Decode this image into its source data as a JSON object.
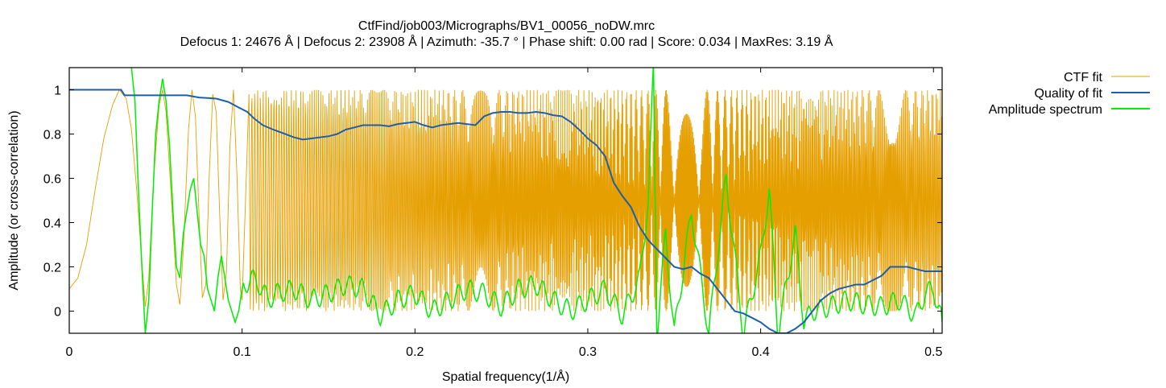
{
  "chart_data": {
    "type": "line",
    "title": "CtfFind/job003/Micrographs/BV1_00056_noDW.mrc",
    "subtitle": "Defocus 1: 24676 Å | Defocus 2: 23908 Å | Azimuth: -35.7 ° | Phase shift: 0.00 rad | Score: 0.034 | MaxRes: 3.19 Å",
    "xlabel": "Spatial frequency(1/Å)",
    "ylabel": "Amplitude (or cross-correlation)",
    "xlim": [
      0,
      0.505
    ],
    "ylim": [
      -0.1,
      1.1
    ],
    "x_ticks": [
      {
        "v": 0,
        "label": "0"
      },
      {
        "v": 0.1,
        "label": "0.1"
      },
      {
        "v": 0.2,
        "label": "0.2"
      },
      {
        "v": 0.3,
        "label": "0.3"
      },
      {
        "v": 0.4,
        "label": "0.4"
      },
      {
        "v": 0.5,
        "label": "0.5"
      }
    ],
    "y_ticks": [
      {
        "v": 0,
        "label": "0"
      },
      {
        "v": 0.2,
        "label": "0.2"
      },
      {
        "v": 0.4,
        "label": "0.4"
      },
      {
        "v": 0.6,
        "label": "0.6"
      },
      {
        "v": 0.8,
        "label": "0.8"
      },
      {
        "v": 1,
        "label": "1"
      }
    ],
    "legend_position": "top-right, outside plot",
    "grid": false,
    "series": [
      {
        "name": "CTF fit",
        "color": "#e69f00",
        "points": [
          [
            0,
            0.1
          ],
          [
            0.005,
            0.15
          ],
          [
            0.01,
            0.3
          ],
          [
            0.015,
            0.55
          ],
          [
            0.02,
            0.78
          ],
          [
            0.025,
            0.93
          ],
          [
            0.029,
            1.0
          ],
          [
            0.033,
            0.96
          ],
          [
            0.036,
            0.82
          ],
          [
            0.039,
            0.55
          ],
          [
            0.042,
            0.22
          ],
          [
            0.044,
            0.02
          ],
          [
            0.046,
            0.15
          ],
          [
            0.049,
            0.62
          ],
          [
            0.052,
            0.93
          ],
          [
            0.054,
            1.0
          ],
          [
            0.056,
            0.9
          ],
          [
            0.059,
            0.52
          ],
          [
            0.062,
            0.12
          ],
          [
            0.064,
            0.03
          ],
          [
            0.066,
            0.28
          ],
          [
            0.069,
            0.82
          ],
          [
            0.071,
            1.0
          ],
          [
            0.073,
            0.88
          ],
          [
            0.075,
            0.45
          ],
          [
            0.077,
            0.06
          ],
          [
            0.079,
            0.12
          ],
          [
            0.081,
            0.62
          ],
          [
            0.083,
            0.98
          ],
          [
            0.085,
            0.9
          ],
          [
            0.087,
            0.45
          ],
          [
            0.089,
            0.05
          ],
          [
            0.091,
            0.18
          ],
          [
            0.093,
            0.75
          ],
          [
            0.095,
            1.0
          ],
          [
            0.097,
            0.62
          ],
          [
            0.099,
            0.1
          ],
          [
            0.1,
            0.05
          ],
          [
            0.102,
            0.5
          ],
          [
            0.104,
            0.98
          ]
        ],
        "oscillation": {
          "comment": "Continues oscillating between ~0 and ~1 with increasing frequency up to x=0.505",
          "min": 0.0,
          "max": 1.0
        }
      },
      {
        "name": "Quality of fit",
        "color": "#1f5fa8",
        "points": [
          [
            0,
            1.0
          ],
          [
            0.03,
            1.0
          ],
          [
            0.032,
            0.975
          ],
          [
            0.06,
            0.975
          ],
          [
            0.068,
            0.975
          ],
          [
            0.075,
            0.965
          ],
          [
            0.085,
            0.96
          ],
          [
            0.092,
            0.945
          ],
          [
            0.098,
            0.92
          ],
          [
            0.103,
            0.9
          ],
          [
            0.107,
            0.87
          ],
          [
            0.112,
            0.84
          ],
          [
            0.118,
            0.82
          ],
          [
            0.125,
            0.8
          ],
          [
            0.13,
            0.785
          ],
          [
            0.135,
            0.775
          ],
          [
            0.14,
            0.78
          ],
          [
            0.145,
            0.785
          ],
          [
            0.15,
            0.79
          ],
          [
            0.155,
            0.8
          ],
          [
            0.16,
            0.82
          ],
          [
            0.165,
            0.83
          ],
          [
            0.17,
            0.84
          ],
          [
            0.175,
            0.84
          ],
          [
            0.18,
            0.84
          ],
          [
            0.185,
            0.835
          ],
          [
            0.19,
            0.845
          ],
          [
            0.195,
            0.85
          ],
          [
            0.2,
            0.855
          ],
          [
            0.205,
            0.84
          ],
          [
            0.21,
            0.83
          ],
          [
            0.215,
            0.84
          ],
          [
            0.22,
            0.845
          ],
          [
            0.225,
            0.85
          ],
          [
            0.23,
            0.845
          ],
          [
            0.235,
            0.84
          ],
          [
            0.24,
            0.88
          ],
          [
            0.245,
            0.895
          ],
          [
            0.25,
            0.9
          ],
          [
            0.255,
            0.9
          ],
          [
            0.26,
            0.895
          ],
          [
            0.265,
            0.895
          ],
          [
            0.27,
            0.9
          ],
          [
            0.275,
            0.895
          ],
          [
            0.28,
            0.885
          ],
          [
            0.285,
            0.88
          ],
          [
            0.29,
            0.855
          ],
          [
            0.295,
            0.82
          ],
          [
            0.3,
            0.78
          ],
          [
            0.305,
            0.75
          ],
          [
            0.31,
            0.7
          ],
          [
            0.315,
            0.58
          ],
          [
            0.32,
            0.52
          ],
          [
            0.325,
            0.47
          ],
          [
            0.33,
            0.38
          ],
          [
            0.335,
            0.32
          ],
          [
            0.34,
            0.28
          ],
          [
            0.345,
            0.24
          ],
          [
            0.35,
            0.2
          ],
          [
            0.355,
            0.19
          ],
          [
            0.36,
            0.2
          ],
          [
            0.365,
            0.17
          ],
          [
            0.37,
            0.15
          ],
          [
            0.375,
            0.1
          ],
          [
            0.38,
            0.05
          ],
          [
            0.385,
            0.0
          ],
          [
            0.39,
            -0.01
          ],
          [
            0.395,
            -0.03
          ],
          [
            0.4,
            -0.05
          ],
          [
            0.405,
            -0.08
          ],
          [
            0.41,
            -0.1
          ],
          [
            0.415,
            -0.1
          ],
          [
            0.42,
            -0.08
          ],
          [
            0.425,
            -0.05
          ],
          [
            0.43,
            0.0
          ],
          [
            0.435,
            0.05
          ],
          [
            0.44,
            0.08
          ],
          [
            0.445,
            0.1
          ],
          [
            0.45,
            0.11
          ],
          [
            0.455,
            0.12
          ],
          [
            0.46,
            0.12
          ],
          [
            0.465,
            0.14
          ],
          [
            0.47,
            0.16
          ],
          [
            0.475,
            0.2
          ],
          [
            0.48,
            0.2
          ],
          [
            0.485,
            0.2
          ],
          [
            0.49,
            0.19
          ],
          [
            0.495,
            0.18
          ],
          [
            0.5,
            0.18
          ],
          [
            0.505,
            0.18
          ]
        ]
      },
      {
        "name": "Amplitude spectrum",
        "color": "#00ee00",
        "points": [
          [
            0.036,
            1.1
          ],
          [
            0.038,
            0.95
          ],
          [
            0.04,
            0.55
          ],
          [
            0.042,
            0.2
          ],
          [
            0.044,
            -0.1
          ],
          [
            0.046,
            0.05
          ],
          [
            0.048,
            0.45
          ],
          [
            0.05,
            0.8
          ],
          [
            0.052,
            0.95
          ],
          [
            0.054,
            1.05
          ],
          [
            0.056,
            0.95
          ],
          [
            0.058,
            0.75
          ],
          [
            0.06,
            0.45
          ],
          [
            0.062,
            0.2
          ],
          [
            0.064,
            0.15
          ],
          [
            0.066,
            0.35
          ],
          [
            0.068,
            0.45
          ],
          [
            0.07,
            0.55
          ],
          [
            0.072,
            0.6
          ],
          [
            0.074,
            0.45
          ],
          [
            0.076,
            0.3
          ],
          [
            0.078,
            0.25
          ],
          [
            0.08,
            0.1
          ],
          [
            0.082,
            0.05
          ],
          [
            0.084,
            0.0
          ],
          [
            0.086,
            0.15
          ],
          [
            0.088,
            0.25
          ],
          [
            0.09,
            0.15
          ],
          [
            0.092,
            0.05
          ],
          [
            0.094,
            0.0
          ],
          [
            0.096,
            -0.05
          ],
          [
            0.098,
            0.0
          ],
          [
            0.1,
            0.1
          ],
          [
            0.105,
            0.15
          ],
          [
            0.11,
            0.12
          ],
          [
            0.115,
            0.05
          ],
          [
            0.12,
            0.08
          ],
          [
            0.13,
            0.1
          ],
          [
            0.14,
            0.05
          ],
          [
            0.15,
            0.08
          ],
          [
            0.16,
            0.12
          ],
          [
            0.17,
            0.1
          ],
          [
            0.18,
            -0.02
          ],
          [
            0.19,
            0.05
          ],
          [
            0.2,
            0.08
          ],
          [
            0.21,
            0.0
          ],
          [
            0.22,
            0.05
          ],
          [
            0.23,
            0.1
          ],
          [
            0.24,
            0.08
          ],
          [
            0.25,
            0.02
          ],
          [
            0.26,
            0.1
          ],
          [
            0.27,
            0.12
          ],
          [
            0.28,
            0.05
          ],
          [
            0.29,
            0.0
          ],
          [
            0.3,
            0.05
          ],
          [
            0.31,
            0.1
          ],
          [
            0.32,
            -0.02
          ],
          [
            0.33,
            0.15
          ],
          [
            0.335,
            0.5
          ],
          [
            0.338,
            1.1
          ],
          [
            0.34,
            -0.1
          ],
          [
            0.345,
            0.35
          ],
          [
            0.35,
            -0.1
          ],
          [
            0.36,
            0.45
          ],
          [
            0.37,
            -0.1
          ],
          [
            0.38,
            0.6
          ],
          [
            0.39,
            -0.1
          ],
          [
            0.4,
            0.25
          ],
          [
            0.405,
            0.55
          ],
          [
            0.41,
            -0.1
          ],
          [
            0.42,
            0.35
          ],
          [
            0.425,
            -0.05
          ],
          [
            0.43,
            0.0
          ],
          [
            0.44,
            0.02
          ],
          [
            0.45,
            0.05
          ],
          [
            0.46,
            0.03
          ],
          [
            0.47,
            0.02
          ],
          [
            0.48,
            0.05
          ],
          [
            0.49,
            -0.02
          ],
          [
            0.495,
            0.08
          ],
          [
            0.5,
            0.1
          ],
          [
            0.505,
            -0.05
          ]
        ]
      }
    ]
  }
}
